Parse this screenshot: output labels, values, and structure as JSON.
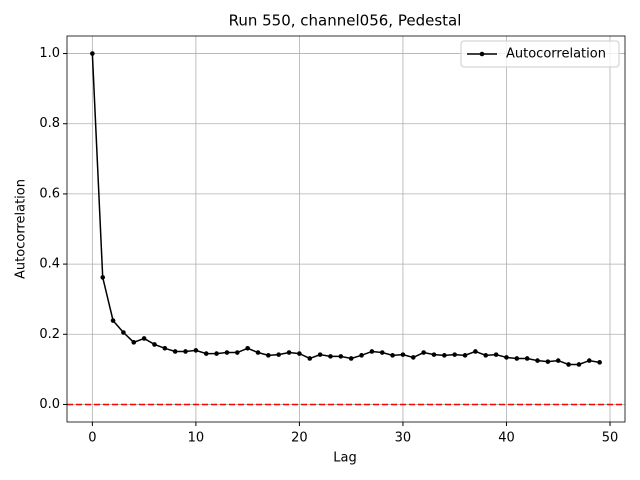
{
  "chart_data": {
    "type": "line",
    "title": "Run 550, channel056, Pedestal",
    "x_label": "Lag",
    "y_label": "Autocorrelation",
    "x": [
      0,
      1,
      2,
      3,
      4,
      5,
      6,
      7,
      8,
      9,
      10,
      11,
      12,
      13,
      14,
      15,
      16,
      17,
      18,
      19,
      20,
      21,
      22,
      23,
      24,
      25,
      26,
      27,
      28,
      29,
      30,
      31,
      32,
      33,
      34,
      35,
      36,
      37,
      38,
      39,
      40,
      41,
      42,
      43,
      44,
      45,
      46,
      47,
      48,
      49
    ],
    "series": [
      {
        "name": "Autocorrelation",
        "color": "#000000",
        "values": [
          1.0,
          0.362,
          0.239,
          0.205,
          0.177,
          0.188,
          0.171,
          0.16,
          0.151,
          0.151,
          0.154,
          0.145,
          0.145,
          0.148,
          0.148,
          0.16,
          0.148,
          0.14,
          0.142,
          0.148,
          0.145,
          0.131,
          0.142,
          0.137,
          0.137,
          0.131,
          0.14,
          0.151,
          0.148,
          0.14,
          0.142,
          0.134,
          0.148,
          0.142,
          0.14,
          0.142,
          0.14,
          0.151,
          0.14,
          0.142,
          0.134,
          0.131,
          0.131,
          0.125,
          0.122,
          0.125,
          0.114,
          0.114,
          0.125,
          0.12
        ]
      }
    ],
    "reference_line": {
      "value": 0,
      "color": "#ff0000"
    },
    "xlim": [
      -2.45,
      51.45
    ],
    "xticks": [
      0,
      10,
      20,
      30,
      40,
      50
    ],
    "ylim": [
      -0.05,
      1.05
    ],
    "yticks": [
      {
        "value": 0,
        "label": "0.0"
      },
      {
        "value": 0.2,
        "label": "0.2"
      },
      {
        "value": 0.4,
        "label": "0.4"
      },
      {
        "value": 0.6,
        "label": "0.6"
      },
      {
        "value": 0.8,
        "label": "0.8"
      },
      {
        "value": 1,
        "label": "1.0"
      }
    ],
    "grid": true,
    "legend": "upper right"
  }
}
